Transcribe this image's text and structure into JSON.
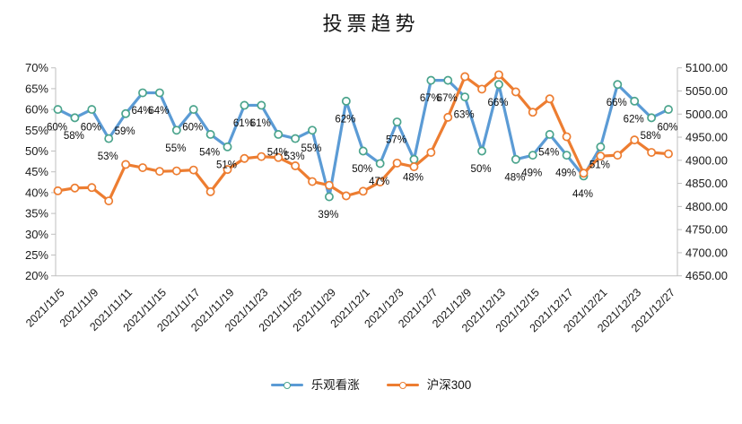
{
  "chart_data": {
    "type": "line",
    "title": "投票趋势",
    "legend_position": "bottom",
    "grid": false,
    "axis_color": "#BFBFBF",
    "text_color": "#1a1a1a",
    "data_label_color": "#0d0d0d",
    "x_label_every": 2,
    "x_tick_labels": [
      "2021/11/5",
      "2021/11/9",
      "2021/11/11",
      "2021/11/15",
      "2021/11/17",
      "2021/11/19",
      "2021/11/23",
      "2021/11/25",
      "2021/11/29",
      "2021/12/1",
      "2021/12/3",
      "2021/12/7",
      "2021/12/9",
      "2021/12/13",
      "2021/12/15",
      "2021/12/17",
      "2021/12/21",
      "2021/12/23",
      "2021/12/27"
    ],
    "left_axis": {
      "min": 20,
      "max": 70,
      "step": 5,
      "tick_labels": [
        "20%",
        "25%",
        "30%",
        "35%",
        "40%",
        "45%",
        "50%",
        "55%",
        "60%",
        "65%",
        "70%"
      ]
    },
    "right_axis": {
      "min": 4650,
      "max": 5100,
      "step": 50,
      "tick_labels": [
        "4650.00",
        "4700.00",
        "4750.00",
        "4800.00",
        "4850.00",
        "4900.00",
        "4950.00",
        "5000.00",
        "5050.00",
        "5100.00"
      ]
    },
    "series": [
      {
        "id": "optimistic",
        "name": "乐观看涨",
        "axis": "left",
        "color": "#5B9BD5",
        "marker": {
          "shape": "circle",
          "fill": "#FFFFFF",
          "stroke": "#4BA48C"
        },
        "show_data_labels": true,
        "label_suffix": "%",
        "values": [
          60,
          58,
          60,
          53,
          59,
          64,
          64,
          55,
          60,
          54,
          51,
          61,
          61,
          54,
          53,
          55,
          39,
          62,
          50,
          47,
          57,
          48,
          67,
          67,
          63,
          50,
          66,
          48,
          49,
          54,
          49,
          44,
          51,
          66,
          62,
          58,
          60
        ]
      },
      {
        "id": "hs300",
        "name": "沪深300",
        "axis": "right",
        "color": "#ED7D31",
        "marker": {
          "shape": "circle",
          "fill": "#FFFFFF",
          "stroke": "#ED7D31"
        },
        "show_data_labels": false,
        "values": [
          4834,
          4840,
          4841,
          4812,
          4891,
          4884,
          4876,
          4877,
          4879,
          4832,
          4880,
          4904,
          4908,
          4906,
          4888,
          4854,
          4846,
          4823,
          4833,
          4853,
          4894,
          4886,
          4917,
          4993,
          5081,
          5054,
          5085,
          5048,
          5004,
          5033,
          4951,
          4872,
          4909,
          4911,
          4944,
          4917,
          4914
        ]
      }
    ]
  }
}
